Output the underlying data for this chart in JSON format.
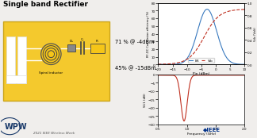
{
  "title": "Single band Rectifier",
  "title_fontsize": 6.5,
  "bg_color": "#f0eeec",
  "box_color": "#f5c518",
  "text_annotations": [
    "71 % @ -4dBm",
    "45% @ -15dBm"
  ],
  "top_chart": {
    "xlabel": "Pin (dBm)",
    "ylabel_left": "RF-DC Conversion efficiency (%)",
    "ylabel_right": "Vdc (Volt)",
    "xlim": [
      -20,
      10
    ],
    "ylim_left": [
      0,
      80
    ],
    "ylim_right": [
      0,
      1.0
    ],
    "yticks_left": [
      0,
      10,
      20,
      30,
      40,
      50,
      60,
      70,
      80
    ],
    "yticks_right": [
      0.0,
      0.1,
      0.2,
      0.3,
      0.4,
      0.5,
      0.6,
      0.7,
      0.8,
      0.9,
      1.0
    ],
    "xticks": [
      -20,
      -15,
      -10,
      -5,
      0,
      5,
      10
    ],
    "legend": [
      "Eff.",
      "Vdc"
    ],
    "line_colors": [
      "#3a7abf",
      "#c03020"
    ],
    "line_styles": [
      "-",
      "--"
    ]
  },
  "bottom_chart": {
    "xlabel": "Frequency (GHz)",
    "ylabel": "S11 (dB)",
    "xlim": [
      0.5,
      2.0
    ],
    "ylim": [
      -30,
      0
    ],
    "xticks": [
      0.5,
      1.0,
      1.5,
      2.0
    ],
    "yticks": [
      -30,
      -25,
      -20,
      -15,
      -10,
      -5,
      0
    ],
    "line_color": "#c03020",
    "line_style": "-"
  },
  "footer_text": "2021 IEEE Wireless Week",
  "wpw_color": "#1a3a6a",
  "ieee_color": "#003087"
}
